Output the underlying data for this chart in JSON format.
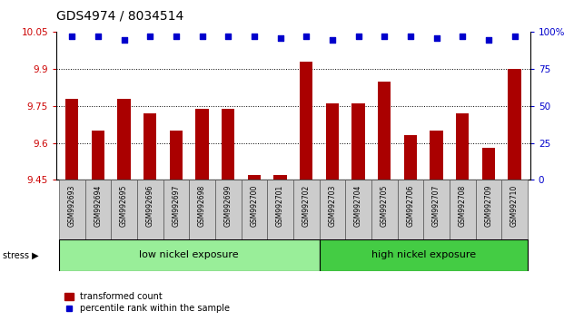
{
  "title": "GDS4974 / 8034514",
  "samples": [
    "GSM992693",
    "GSM992694",
    "GSM992695",
    "GSM992696",
    "GSM992697",
    "GSM992698",
    "GSM992699",
    "GSM992700",
    "GSM992701",
    "GSM992702",
    "GSM992703",
    "GSM992704",
    "GSM992705",
    "GSM992706",
    "GSM992707",
    "GSM992708",
    "GSM992709",
    "GSM992710"
  ],
  "transformed_counts": [
    9.78,
    9.65,
    9.78,
    9.72,
    9.65,
    9.74,
    9.74,
    9.47,
    9.47,
    9.93,
    9.76,
    9.76,
    9.85,
    9.63,
    9.65,
    9.72,
    9.58,
    9.9
  ],
  "percentile_ranks": [
    97,
    97,
    95,
    97,
    97,
    97,
    97,
    97,
    96,
    97,
    95,
    97,
    97,
    97,
    96,
    97,
    95,
    97
  ],
  "ylim_left": [
    9.45,
    10.05
  ],
  "ylim_right": [
    0,
    100
  ],
  "yticks_left": [
    9.45,
    9.6,
    9.75,
    9.9,
    10.05
  ],
  "yticks_right": [
    0,
    25,
    50,
    75,
    100
  ],
  "ytick_labels_right": [
    "0",
    "25",
    "50",
    "75",
    "100%"
  ],
  "bar_color": "#aa0000",
  "dot_color": "#0000cc",
  "grid_lines": [
    9.6,
    9.75,
    9.9
  ],
  "group1_label": "low nickel exposure",
  "group2_label": "high nickel exposure",
  "group1_count": 10,
  "group2_count": 8,
  "group1_color": "#99ee99",
  "group2_color": "#44cc44",
  "stress_label": "stress",
  "legend_bar_label": "transformed count",
  "legend_dot_label": "percentile rank within the sample",
  "bar_width": 0.5,
  "tick_label_color_left": "#cc0000",
  "tick_label_color_right": "#0000cc",
  "cell_color": "#cccccc",
  "cell_border": "#555555"
}
